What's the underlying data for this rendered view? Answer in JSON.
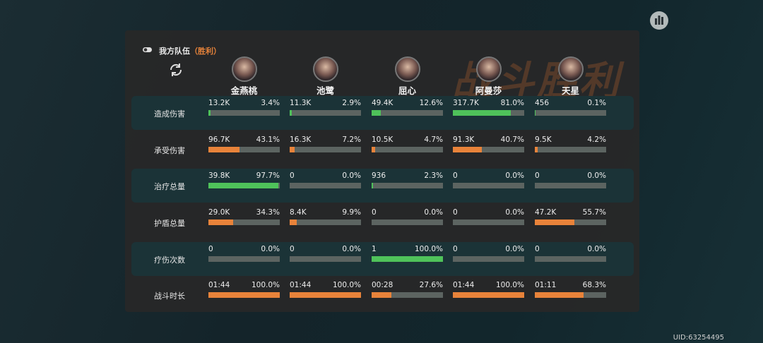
{
  "banner": "战斗胜利",
  "header": {
    "team": "我方队伍",
    "result": "（胜利）"
  },
  "characters": [
    "金燕桃",
    "池鹭",
    "屈心",
    "阿曼莎",
    "天星"
  ],
  "rows": [
    {
      "label": "造成伤害",
      "bar_color": "#4fc25a",
      "cells": [
        {
          "value": "13.2K",
          "percent": 3.4,
          "percent_label": "3.4%"
        },
        {
          "value": "11.3K",
          "percent": 2.9,
          "percent_label": "2.9%"
        },
        {
          "value": "49.4K",
          "percent": 12.6,
          "percent_label": "12.6%"
        },
        {
          "value": "317.7K",
          "percent": 81,
          "percent_label": "81.0%"
        },
        {
          "value": "456",
          "percent": 0.1,
          "percent_label": "0.1%"
        }
      ]
    },
    {
      "label": "承受伤害",
      "bar_color": "#e8833a",
      "cells": [
        {
          "value": "96.7K",
          "percent": 43.1,
          "percent_label": "43.1%"
        },
        {
          "value": "16.3K",
          "percent": 7.2,
          "percent_label": "7.2%"
        },
        {
          "value": "10.5K",
          "percent": 4.7,
          "percent_label": "4.7%"
        },
        {
          "value": "91.3K",
          "percent": 40.7,
          "percent_label": "40.7%"
        },
        {
          "value": "9.5K",
          "percent": 4.2,
          "percent_label": "4.2%"
        }
      ]
    },
    {
      "label": "治疗总量",
      "bar_color": "#4fc25a",
      "cells": [
        {
          "value": "39.8K",
          "percent": 97.7,
          "percent_label": "97.7%"
        },
        {
          "value": "0",
          "percent": 0,
          "percent_label": "0.0%"
        },
        {
          "value": "936",
          "percent": 2.3,
          "percent_label": "2.3%"
        },
        {
          "value": "0",
          "percent": 0,
          "percent_label": "0.0%"
        },
        {
          "value": "0",
          "percent": 0,
          "percent_label": "0.0%"
        }
      ]
    },
    {
      "label": "护盾总量",
      "bar_color": "#e8833a",
      "cells": [
        {
          "value": "29.0K",
          "percent": 34.3,
          "percent_label": "34.3%"
        },
        {
          "value": "8.4K",
          "percent": 9.9,
          "percent_label": "9.9%"
        },
        {
          "value": "0",
          "percent": 0,
          "percent_label": "0.0%"
        },
        {
          "value": "0",
          "percent": 0,
          "percent_label": "0.0%"
        },
        {
          "value": "47.2K",
          "percent": 55.7,
          "percent_label": "55.7%"
        }
      ]
    },
    {
      "label": "疗伤次数",
      "bar_color": "#4fc25a",
      "cells": [
        {
          "value": "0",
          "percent": 0,
          "percent_label": "0.0%"
        },
        {
          "value": "0",
          "percent": 0,
          "percent_label": "0.0%"
        },
        {
          "value": "1",
          "percent": 100,
          "percent_label": "100.0%"
        },
        {
          "value": "0",
          "percent": 0,
          "percent_label": "0.0%"
        },
        {
          "value": "0",
          "percent": 0,
          "percent_label": "0.0%"
        }
      ]
    },
    {
      "label": "战斗时长",
      "bar_color": "#e8833a",
      "cells": [
        {
          "value": "01:44",
          "percent": 100,
          "percent_label": "100.0%"
        },
        {
          "value": "01:44",
          "percent": 100,
          "percent_label": "100.0%"
        },
        {
          "value": "00:28",
          "percent": 27.6,
          "percent_label": "27.6%"
        },
        {
          "value": "01:44",
          "percent": 100,
          "percent_label": "100.0%"
        },
        {
          "value": "01:11",
          "percent": 68.3,
          "percent_label": "68.3%"
        }
      ]
    }
  ],
  "uid": "UID:63254495"
}
